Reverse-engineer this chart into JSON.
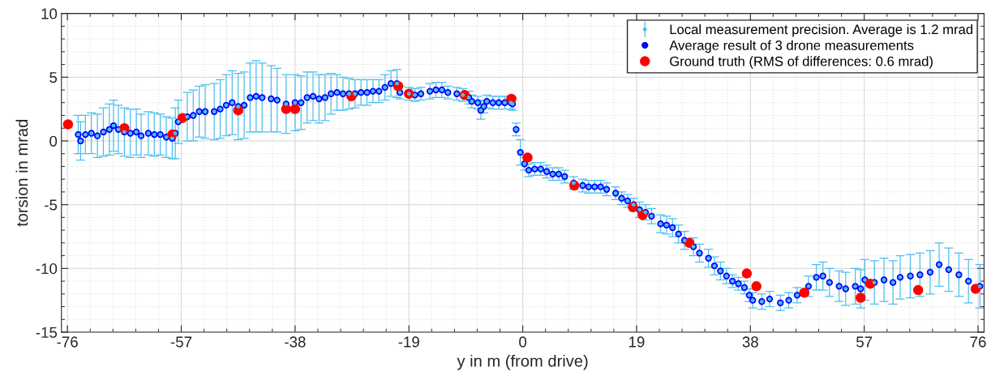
{
  "chart_data": {
    "type": "scatter",
    "xlabel": "y in m (from drive)",
    "ylabel": "torsion in mrad",
    "xlim": [
      -77,
      77
    ],
    "ylim": [
      -15,
      10
    ],
    "xticks": [
      -76,
      -57,
      -38,
      -19,
      0,
      19,
      38,
      57,
      76
    ],
    "yticks": [
      -15,
      -10,
      -5,
      0,
      5,
      10
    ],
    "grid": true,
    "legend": "top right",
    "series": [
      {
        "name": "Local measurement precision. Average is 1.2 mrad",
        "marker": "circle",
        "color": "#4dbeee",
        "x": [
          -74.2,
          -73.8,
          -73,
          -72,
          -71,
          -70,
          -69,
          -68.3,
          -67.5,
          -66.5,
          -65.5,
          -64.5,
          -63.7,
          -62.5,
          -61.5,
          -60.5,
          -59.5,
          -58.5,
          -58,
          -57.5,
          -56,
          -55,
          -54,
          -53,
          -51.5,
          -50.5,
          -49.5,
          -48.5,
          -47.5,
          -46.5,
          -45.5,
          -44.5,
          -43.5,
          -42,
          -41,
          -39.5,
          -38,
          -37,
          -36,
          -35,
          -34,
          -33,
          -32,
          -31,
          -30,
          -29,
          -28,
          -27,
          -26,
          -25,
          -24,
          -23,
          -22,
          -21,
          -20.5,
          -19,
          -18,
          -17,
          -15.5,
          -14.5,
          -13.5,
          -12.5,
          -11,
          -10,
          -9,
          -8.5,
          -7.5,
          -7,
          -6.5,
          -6,
          -5,
          -4,
          -3,
          -2,
          -1.7,
          -1.1,
          -0.4,
          0.3,
          1,
          2,
          3,
          4,
          5,
          6,
          7,
          8.5,
          10,
          11,
          12,
          13,
          14,
          15.5,
          16.5,
          17.5,
          18.5,
          19.5,
          20.5,
          21.5,
          23,
          24,
          25,
          26,
          27,
          28.5,
          29.5,
          31,
          32,
          33,
          34,
          35,
          36,
          37,
          37.8,
          38.4,
          39.9,
          41.2,
          43,
          44.4,
          45.8,
          47.7,
          49,
          50.1,
          51.2,
          52.8,
          53.9,
          55.5,
          56.4,
          57.1,
          58.7,
          60.3,
          61.8,
          63,
          64.7,
          66.3,
          68,
          69.5,
          71.1,
          72.8,
          74.4,
          76.3
        ],
        "values": [
          0.5,
          0.0,
          0.5,
          0.6,
          0.4,
          0.7,
          0.9,
          1.2,
          0.9,
          0.7,
          0.6,
          0.7,
          0.4,
          0.6,
          0.5,
          0.5,
          0.3,
          0.2,
          0.6,
          1.5,
          1.9,
          2.0,
          2.3,
          2.3,
          2.3,
          2.5,
          2.8,
          3.0,
          2.7,
          2.8,
          3.4,
          3.5,
          3.4,
          3.3,
          3.2,
          2.9,
          3.0,
          3.0,
          3.4,
          3.5,
          3.3,
          3.4,
          3.7,
          3.8,
          3.7,
          3.7,
          3.7,
          3.8,
          3.8,
          3.9,
          3.9,
          4.2,
          4.5,
          4.5,
          3.8,
          3.7,
          3.6,
          3.7,
          3.9,
          4.0,
          4.0,
          3.8,
          3.7,
          3.6,
          3.4,
          3.1,
          3.0,
          2.4,
          2.7,
          3.1,
          3.0,
          3.0,
          3.0,
          3.0,
          2.9,
          0.9,
          -0.9,
          -1.8,
          -2.3,
          -2.2,
          -2.2,
          -2.4,
          -2.6,
          -2.6,
          -2.8,
          -3.3,
          -3.5,
          -3.6,
          -3.6,
          -3.6,
          -3.8,
          -4.1,
          -4.5,
          -4.7,
          -5.0,
          -5.4,
          -5.6,
          -5.9,
          -6.5,
          -6.6,
          -6.8,
          -7.3,
          -7.8,
          -8.3,
          -8.8,
          -9.2,
          -9.8,
          -10.2,
          -10.6,
          -11.0,
          -11.2,
          -11.5,
          -12.1,
          -12.5,
          -12.6,
          -12.4,
          -12.7,
          -12.5,
          -12.1,
          -11.4,
          -10.7,
          -10.6,
          -11.1,
          -11.4,
          -11.6,
          -11.4,
          -11.6,
          -10.9,
          -11.1,
          -10.9,
          -11.1,
          -10.7,
          -10.6,
          -10.5,
          -10.3,
          -9.7,
          -10.1,
          -10.5,
          -11.0,
          -11.4
        ],
        "errors": [
          1.5,
          1.5,
          1.5,
          1.6,
          1.7,
          1.9,
          2.0,
          2.0,
          1.9,
          1.9,
          1.9,
          1.8,
          1.7,
          1.7,
          1.7,
          1.6,
          1.6,
          1.6,
          2.0,
          1.7,
          1.9,
          2.0,
          2.0,
          2.1,
          2.2,
          2.3,
          2.4,
          2.5,
          2.6,
          2.6,
          2.7,
          2.8,
          2.7,
          2.6,
          2.5,
          2.3,
          2.2,
          2.1,
          2.0,
          1.9,
          1.9,
          1.8,
          1.6,
          1.4,
          1.3,
          1.2,
          1.1,
          1.0,
          1.0,
          0.9,
          0.9,
          1.0,
          1.0,
          1.1,
          0.5,
          0.5,
          0.5,
          0.5,
          0.6,
          0.6,
          0.6,
          0.5,
          0.5,
          0.5,
          0.5,
          0.5,
          0.5,
          0.7,
          0.5,
          0.5,
          0.5,
          0.5,
          0.5,
          0.5,
          0.5,
          0.5,
          1.0,
          0.5,
          0.5,
          0.5,
          0.5,
          0.5,
          0.5,
          0.5,
          0.5,
          0.5,
          0.5,
          0.5,
          0.5,
          0.5,
          0.5,
          0.5,
          0.5,
          0.5,
          0.5,
          0.6,
          0.6,
          0.6,
          0.7,
          0.7,
          0.7,
          0.7,
          0.7,
          0.7,
          0.7,
          0.7,
          0.7,
          0.7,
          0.6,
          0.5,
          0.5,
          0.5,
          0.5,
          0.6,
          0.6,
          0.6,
          0.6,
          0.6,
          0.6,
          0.8,
          1.0,
          1.1,
          1.1,
          1.2,
          1.3,
          1.4,
          1.5,
          1.6,
          1.7,
          1.7,
          1.7,
          1.7,
          1.7,
          1.7,
          1.7,
          1.7,
          1.7,
          1.7,
          1.7,
          1.7
        ]
      },
      {
        "name": "Average result of 3 drone measurements",
        "marker": "circle",
        "color": "#0000ff",
        "x": [
          -74.2,
          -73.8,
          -73,
          -72,
          -71,
          -70,
          -69,
          -68.3,
          -67.5,
          -66.5,
          -65.5,
          -64.5,
          -63.7,
          -62.5,
          -61.5,
          -60.5,
          -59.5,
          -58.5,
          -58,
          -57.5,
          -56,
          -55,
          -54,
          -53,
          -51.5,
          -50.5,
          -49.5,
          -48.5,
          -47.5,
          -46.5,
          -45.5,
          -44.5,
          -43.5,
          -42,
          -41,
          -39.5,
          -38,
          -37,
          -36,
          -35,
          -34,
          -33,
          -32,
          -31,
          -30,
          -29,
          -28,
          -27,
          -26,
          -25,
          -24,
          -23,
          -22,
          -21,
          -20.5,
          -19,
          -18,
          -17,
          -15.5,
          -14.5,
          -13.5,
          -12.5,
          -11,
          -10,
          -9,
          -8.5,
          -7.5,
          -7,
          -6.5,
          -6,
          -5,
          -4,
          -3,
          -2,
          -1.7,
          -1.1,
          -0.4,
          0.3,
          1,
          2,
          3,
          4,
          5,
          6,
          7,
          8.5,
          10,
          11,
          12,
          13,
          14,
          15.5,
          16.5,
          17.5,
          18.5,
          19.5,
          20.5,
          21.5,
          23,
          24,
          25,
          26,
          27,
          28.5,
          29.5,
          31,
          32,
          33,
          34,
          35,
          36,
          37,
          37.8,
          38.4,
          39.9,
          41.2,
          43,
          44.4,
          45.8,
          47.7,
          49,
          50.1,
          51.2,
          52.8,
          53.9,
          55.5,
          56.4,
          57.1,
          58.7,
          60.3,
          61.8,
          63,
          64.7,
          66.3,
          68,
          69.5,
          71.1,
          72.8,
          74.4,
          76.3
        ],
        "values": [
          0.5,
          0.0,
          0.5,
          0.6,
          0.4,
          0.7,
          0.9,
          1.2,
          0.9,
          0.7,
          0.6,
          0.7,
          0.4,
          0.6,
          0.5,
          0.5,
          0.3,
          0.2,
          0.6,
          1.5,
          1.9,
          2.0,
          2.3,
          2.3,
          2.3,
          2.5,
          2.8,
          3.0,
          2.7,
          2.8,
          3.4,
          3.5,
          3.4,
          3.3,
          3.2,
          2.9,
          3.0,
          3.0,
          3.4,
          3.5,
          3.3,
          3.4,
          3.7,
          3.8,
          3.7,
          3.7,
          3.7,
          3.8,
          3.8,
          3.9,
          3.9,
          4.2,
          4.5,
          4.5,
          3.8,
          null,
          3.6,
          3.7,
          3.9,
          4.0,
          4.0,
          3.8,
          3.7,
          null,
          3.4,
          3.1,
          3.0,
          2.4,
          2.7,
          3.1,
          3.0,
          3.0,
          3.0,
          3.0,
          2.9,
          0.9,
          -0.9,
          -1.8,
          -2.3,
          -2.2,
          -2.2,
          -2.4,
          -2.6,
          -2.6,
          -2.8,
          -3.3,
          -3.5,
          -3.6,
          -3.6,
          -3.6,
          -3.8,
          -4.1,
          -4.5,
          -4.7,
          -5.0,
          -5.4,
          -5.6,
          -5.9,
          -6.5,
          -6.6,
          -6.8,
          -7.3,
          -7.8,
          -8.3,
          -8.8,
          -9.2,
          -9.8,
          -10.2,
          -10.6,
          -11.0,
          -11.2,
          -11.5,
          -12.1,
          -12.5,
          -12.6,
          -12.4,
          -12.7,
          -12.5,
          -12.1,
          -11.4,
          -10.7,
          -10.6,
          -11.1,
          -11.4,
          -11.6,
          -11.4,
          -11.6,
          -10.9,
          -11.1,
          -10.9,
          -11.1,
          -10.7,
          -10.6,
          -10.5,
          -10.3,
          -9.7,
          -10.1,
          -10.5,
          -11.0,
          -11.4
        ]
      },
      {
        "name": "Ground truth (RMS of differences: 0.6 mrad)",
        "marker": "circle",
        "color": "#ff0000",
        "x": [
          -75.9,
          -66.5,
          -58.5,
          -56.8,
          -47.5,
          -39.5,
          -38,
          -28.6,
          -20.8,
          -19,
          -9.7,
          -1.9,
          0.8,
          8.6,
          18.4,
          20,
          27.8,
          37.4,
          39,
          47,
          56.4,
          58,
          66,
          75.6
        ],
        "values": [
          1.3,
          1.0,
          0.5,
          1.8,
          2.4,
          2.5,
          2.5,
          3.5,
          4.3,
          3.7,
          3.6,
          3.3,
          -1.3,
          -3.5,
          -5.2,
          -5.8,
          -8.0,
          -10.4,
          -11.4,
          -11.9,
          -12.3,
          -11.2,
          -11.7,
          -11.6
        ]
      }
    ]
  }
}
